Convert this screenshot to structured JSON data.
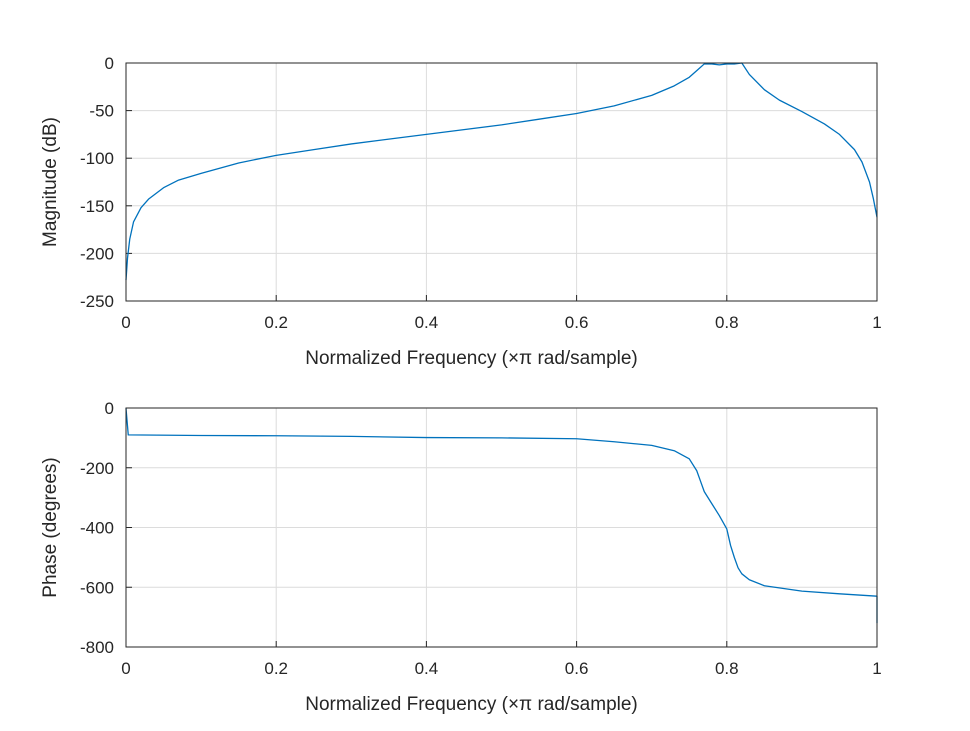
{
  "chart_data": [
    {
      "type": "line",
      "xlabel": "Normalized Frequency (×π rad/sample)",
      "ylabel": "Magnitude (dB)",
      "xlim": [
        0,
        1
      ],
      "ylim": [
        -250,
        0
      ],
      "xticks": [
        "0",
        "0.2",
        "0.4",
        "0.6",
        "0.8",
        "1"
      ],
      "yticks": [
        "0",
        "-50",
        "-100",
        "-150",
        "-200",
        "-250"
      ],
      "grid": true,
      "line_color": "#0072bd",
      "series": [
        {
          "x": [
            0,
            0.002,
            0.005,
            0.01,
            0.02,
            0.03,
            0.05,
            0.07,
            0.1,
            0.15,
            0.2,
            0.25,
            0.3,
            0.35,
            0.4,
            0.45,
            0.5,
            0.55,
            0.6,
            0.65,
            0.7,
            0.73,
            0.75,
            0.76,
            0.77,
            0.78,
            0.79,
            0.8,
            0.81,
            0.82,
            0.83,
            0.85,
            0.87,
            0.9,
            0.93,
            0.95,
            0.97,
            0.98,
            0.99,
            0.995,
            1.0
          ],
          "y": [
            -228,
            -205,
            -185,
            -167,
            -152,
            -143,
            -131,
            -123,
            -116,
            -105,
            -97,
            -91,
            -85,
            -80,
            -75,
            -70,
            -65,
            -59,
            -53,
            -45,
            -34,
            -24,
            -15,
            -8,
            -1,
            -1,
            -2,
            -1,
            -1,
            0,
            -12,
            -28,
            -39,
            -51,
            -64,
            -75,
            -91,
            -104,
            -125,
            -142,
            -162
          ]
        }
      ]
    },
    {
      "type": "line",
      "xlabel": "Normalized Frequency (×π rad/sample)",
      "ylabel": "Phase (degrees)",
      "xlim": [
        0,
        1
      ],
      "ylim": [
        -800,
        0
      ],
      "xticks": [
        "0",
        "0.2",
        "0.4",
        "0.6",
        "0.8",
        "1"
      ],
      "yticks": [
        "0",
        "-200",
        "-400",
        "-600",
        "-800"
      ],
      "grid": true,
      "line_color": "#0072bd",
      "series": [
        {
          "x": [
            0,
            0.002,
            0.003,
            0.1,
            0.2,
            0.3,
            0.4,
            0.5,
            0.6,
            0.65,
            0.7,
            0.73,
            0.75,
            0.76,
            0.765,
            0.77,
            0.775,
            0.78,
            0.79,
            0.8,
            0.805,
            0.81,
            0.815,
            0.82,
            0.83,
            0.85,
            0.9,
            0.95,
            1.0,
            1.0
          ],
          "y": [
            -1,
            -60,
            -90,
            -92,
            -93,
            -95,
            -99,
            -100,
            -103,
            -113,
            -125,
            -143,
            -170,
            -210,
            -245,
            -280,
            -300,
            -320,
            -360,
            -405,
            -460,
            -500,
            -535,
            -555,
            -575,
            -595,
            -613,
            -622,
            -630,
            -720
          ]
        }
      ]
    }
  ]
}
